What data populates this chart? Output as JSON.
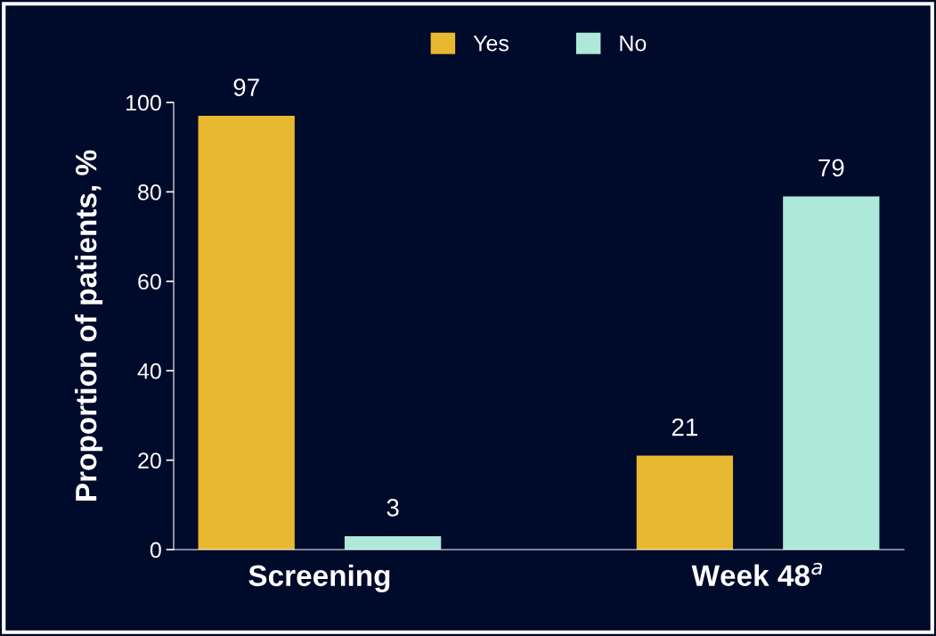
{
  "chart_data": {
    "type": "bar",
    "categories": [
      "Screening",
      "Week 48$^{a}$"
    ],
    "ylabel": "Proportion of patients, %",
    "series": [
      {
        "name": "Yes",
        "color": "#e8b830",
        "values": [
          97,
          21
        ]
      },
      {
        "name": "No",
        "color": "#aee8d8",
        "values": [
          3,
          79
        ]
      }
    ],
    "ylim": [
      0,
      100
    ],
    "yticks": [
      0,
      20,
      40,
      60,
      80,
      100
    ],
    "data_labels": true,
    "grid": false,
    "legend": "top"
  }
}
